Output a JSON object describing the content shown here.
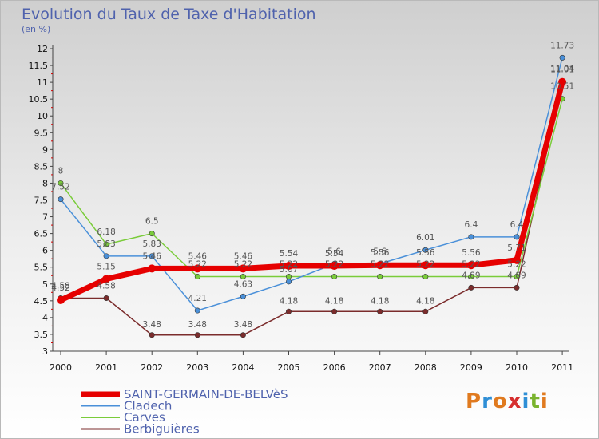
{
  "title": "Evolution du Taux de Taxe d'Habitation",
  "unit_label": "(en %)",
  "logo": {
    "text": "Proxiti",
    "colors": [
      "#e07a1f",
      "#2f8fd6",
      "#e07a1f",
      "#d62f2f",
      "#2f8fd6",
      "#7ab32e",
      "#e07a1f"
    ]
  },
  "chart_data": {
    "type": "line",
    "title": "Evolution du Taux de Taxe d'Habitation",
    "ylabel": "(en %)",
    "xlabel": "",
    "x": [
      "2000",
      "2001",
      "2002",
      "2003",
      "2004",
      "2005",
      "2006",
      "2007",
      "2008",
      "2009",
      "2010",
      "2011"
    ],
    "ylim": [
      3,
      12
    ],
    "yticks": [
      "3",
      "3.5",
      "4",
      "4.5",
      "5",
      "5.5",
      "6",
      "6.5",
      "7",
      "7.5",
      "8",
      "8.5",
      "9",
      "9.5",
      "10",
      "10.5",
      "11",
      "11.5",
      "12"
    ],
    "grid": false,
    "legend": "bottom-left",
    "series": [
      {
        "name": "SAINT-GERMAIN-DE-BELVèS",
        "color": "#e60000",
        "values": [
          4.52,
          5.15,
          5.46,
          5.46,
          5.46,
          5.54,
          5.54,
          5.56,
          5.56,
          5.56,
          5.71,
          11.01
        ],
        "labels": [
          "4.52",
          "5.15",
          "5.46",
          "5.46",
          "5.46",
          "5.54",
          "5.54",
          "5.56",
          "5.56",
          "5.56",
          "5.71",
          "11.01"
        ]
      },
      {
        "name": "Cladech",
        "color": "#4a90d9",
        "values": [
          7.52,
          5.83,
          5.83,
          4.21,
          4.63,
          5.07,
          5.6,
          5.6,
          6.01,
          6.4,
          6.4,
          11.73
        ],
        "labels": [
          "7.52",
          "5.83",
          "5.83",
          "4.21",
          "4.63",
          "5.07",
          "5.6",
          "5.6",
          "6.01",
          "6.4",
          "6.4",
          "11.73"
        ]
      },
      {
        "name": "Carves",
        "color": "#7acc3a",
        "values": [
          8,
          6.18,
          6.5,
          5.22,
          5.22,
          5.22,
          5.22,
          5.22,
          5.22,
          5.22,
          5.22,
          10.51
        ],
        "labels": [
          "8",
          "6.18",
          "6.5",
          "5.22",
          "5.22",
          "5.22",
          "5.22",
          "5.22",
          "5.22",
          "5.22",
          "5.22",
          "10.51"
        ]
      },
      {
        "name": "Berbiguières",
        "color": "#7b2c2c",
        "values": [
          4.58,
          4.58,
          3.48,
          3.48,
          3.48,
          4.18,
          4.18,
          4.18,
          4.18,
          4.89,
          4.89,
          11.04
        ],
        "labels": [
          "4.58",
          "4.58",
          "3.48",
          "3.48",
          "3.48",
          "4.18",
          "4.18",
          "4.18",
          "4.18",
          "4.89",
          "4.89",
          "11.04"
        ]
      }
    ]
  }
}
